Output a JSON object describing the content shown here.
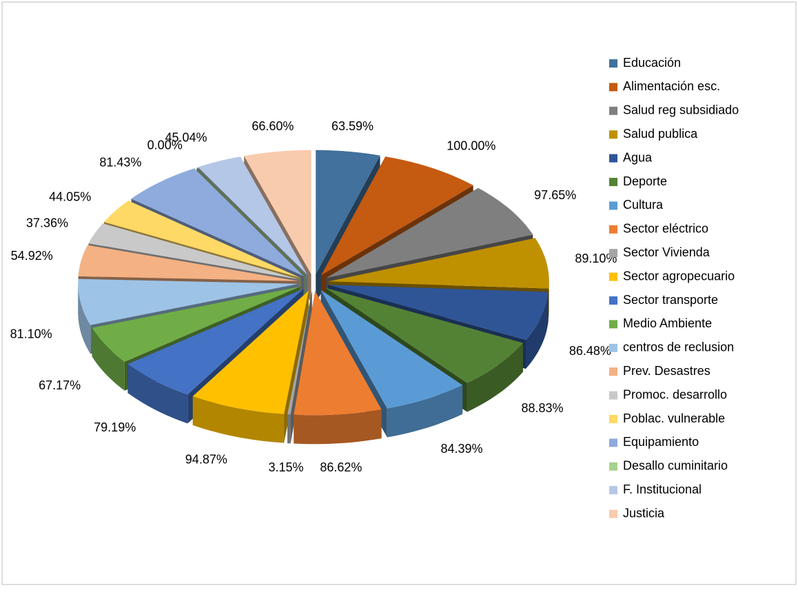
{
  "chart_data": {
    "type": "pie",
    "categories": [
      "Educación",
      "Alimentación esc.",
      "Salud reg subsidiado",
      "Salud publica",
      "Agua",
      "Deporte",
      "Cultura",
      "Sector eléctrico",
      "Sector Vivienda",
      "Sector agropecuario",
      "Sector transporte",
      "Medio Ambiente",
      "centros de reclusion",
      "Prev. Desastres",
      "Promoc. desarrollo",
      "Poblac. vulnerable",
      "Equipamiento",
      "Desallo cuminitario",
      "F. Institucional",
      "Justicia"
    ],
    "values": [
      63.59,
      100,
      97.65,
      89.1,
      86.48,
      88.83,
      84.39,
      86.62,
      3.15,
      94.87,
      79.19,
      67.17,
      81.1,
      54.92,
      37.36,
      44.05,
      81.43,
      0,
      45.04,
      66.6
    ],
    "value_labels": [
      "63.59%",
      "100.00%",
      "97.65%",
      "89.10%",
      "86.48%",
      "88.83%",
      "84.39%",
      "86.62%",
      "3.15%",
      "94.87%",
      "79.19%",
      "67.17%",
      "81.10%",
      "54.92%",
      "37.36%",
      "44.05%",
      "81.43%",
      "0.00%",
      "45.04%",
      "66.60%"
    ],
    "colors": [
      "#41719c",
      "#c55a11",
      "#7f7f7f",
      "#bf9000",
      "#2f5597",
      "#548235",
      "#5b9bd5",
      "#ed7d31",
      "#a5a5a5",
      "#ffc000",
      "#4472c4",
      "#70ad47",
      "#9dc3e6",
      "#f4b183",
      "#c9c9c9",
      "#ffd966",
      "#8faadc",
      "#a9d18e",
      "#b4c7e7",
      "#f8cbad"
    ],
    "legend": "right"
  }
}
